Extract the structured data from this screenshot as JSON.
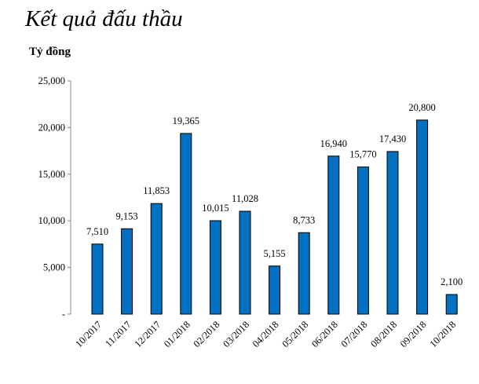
{
  "chart_data": {
    "type": "bar",
    "title": "Kết quả đấu thầu",
    "ylabel": "Tỷ đồng",
    "xlabel": "",
    "categories": [
      "10/2017",
      "11/2017",
      "12/2017",
      "01/2018",
      "02/2018",
      "03/2018",
      "04/2018",
      "05/2018",
      "06/2018",
      "07/2018",
      "08/2018",
      "09/2018",
      "10/2018"
    ],
    "values": [
      7510,
      9153,
      11853,
      19365,
      10015,
      11028,
      5155,
      8733,
      16940,
      15770,
      17430,
      20800,
      2100
    ],
    "data_labels": [
      "7,510",
      "9,153",
      "11,853",
      "19,365",
      "10,015",
      "11,028",
      "5,155",
      "8,733",
      "16,940",
      "15,770",
      "17,430",
      "20,800",
      "2,100"
    ],
    "ylim": [
      0,
      25000
    ],
    "yticks": [
      0,
      5000,
      10000,
      15000,
      20000,
      25000
    ],
    "ytick_labels": [
      "-",
      "5,000",
      "10,000",
      "15,000",
      "20,000",
      "25,000"
    ],
    "grid": false,
    "bar_color": "#0070C0"
  }
}
